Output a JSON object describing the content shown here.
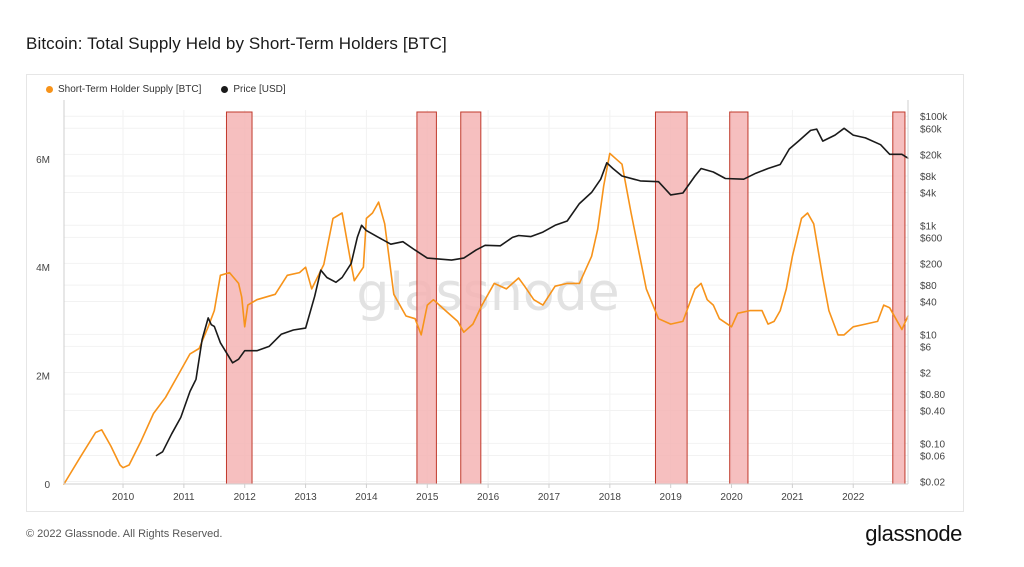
{
  "title": "Bitcoin: Total Supply Held by Short-Term Holders [BTC]",
  "watermark": "glassnode",
  "footer": "© 2022 Glassnode. All Rights Reserved.",
  "brand": "glassnode",
  "legend": [
    {
      "label": "Short-Term Holder Supply [BTC]",
      "color": "#f7931a",
      "icon": "orange-dot-icon"
    },
    {
      "label": "Price [USD]",
      "color": "#1a1a1a",
      "icon": "black-dot-icon"
    }
  ],
  "colors": {
    "sth_supply": "#f7931a",
    "price": "#1a1a1a",
    "band_fill": "#f4b4b4",
    "band_stroke": "#c0392b"
  },
  "chart_data": {
    "type": "line",
    "title": "Bitcoin: Total Supply Held by Short-Term Holders [BTC]",
    "x_range": [
      2009.03,
      2022.9
    ],
    "left_axis": {
      "ticks": [
        0,
        2000000,
        4000000,
        6000000
      ],
      "tick_labels": [
        "0",
        "2M",
        "4M",
        "6M"
      ],
      "ylim": [
        0,
        6900000
      ]
    },
    "right_axis": {
      "scale": "log",
      "ylim": [
        0.018,
        130000
      ],
      "ticks": [
        0.02,
        0.06,
        0.1,
        0.4,
        0.8,
        2,
        6,
        10,
        40,
        80,
        200,
        600,
        1000,
        4000,
        8000,
        20000,
        60000,
        100000
      ],
      "tick_labels": [
        "$0.02",
        "$0.06",
        "$0.10",
        "$0.40",
        "$0.80",
        "$2",
        "$6",
        "$10",
        "$40",
        "$80",
        "$200",
        "$600",
        "$1k",
        "$4k",
        "$8k",
        "$20k",
        "$60k",
        "$100k"
      ]
    },
    "x_ticks": [
      2010,
      2011,
      2012,
      2013,
      2014,
      2015,
      2016,
      2017,
      2018,
      2019,
      2020,
      2021,
      2022
    ],
    "x_tick_labels": [
      "2010",
      "2011",
      "2012",
      "2013",
      "2014",
      "2015",
      "2016",
      "2017",
      "2018",
      "2019",
      "2020",
      "2021",
      "2022"
    ],
    "highlight_bands": [
      [
        2011.7,
        2012.12
      ],
      [
        2014.83,
        2015.15
      ],
      [
        2015.55,
        2015.88
      ],
      [
        2018.75,
        2019.27
      ],
      [
        2019.97,
        2020.27
      ],
      [
        2022.65,
        2022.85
      ]
    ],
    "series": [
      {
        "name": "Short-Term Holder Supply [BTC]",
        "axis": "left",
        "x": [
          2009.03,
          2009.3,
          2009.55,
          2009.65,
          2009.8,
          2009.95,
          2010.0,
          2010.1,
          2010.3,
          2010.5,
          2010.7,
          2010.9,
          2011.1,
          2011.25,
          2011.4,
          2011.5,
          2011.6,
          2011.75,
          2011.9,
          2011.95,
          2012.0,
          2012.05,
          2012.2,
          2012.5,
          2012.7,
          2012.9,
          2013.0,
          2013.1,
          2013.3,
          2013.45,
          2013.6,
          2013.75,
          2013.8,
          2013.95,
          2014.0,
          2014.1,
          2014.2,
          2014.3,
          2014.45,
          2014.65,
          2014.8,
          2014.9,
          2015.0,
          2015.1,
          2015.3,
          2015.5,
          2015.6,
          2015.75,
          2015.9,
          2016.1,
          2016.3,
          2016.5,
          2016.6,
          2016.75,
          2016.9,
          2017.1,
          2017.3,
          2017.5,
          2017.7,
          2017.8,
          2017.9,
          2018.0,
          2018.1,
          2018.2,
          2018.35,
          2018.6,
          2018.8,
          2019.0,
          2019.2,
          2019.3,
          2019.4,
          2019.5,
          2019.6,
          2019.7,
          2019.8,
          2020.0,
          2020.1,
          2020.3,
          2020.5,
          2020.6,
          2020.7,
          2020.8,
          2020.9,
          2021.0,
          2021.15,
          2021.25,
          2021.35,
          2021.5,
          2021.6,
          2021.75,
          2021.85,
          2022.0,
          2022.2,
          2022.4,
          2022.5,
          2022.6,
          2022.7,
          2022.8,
          2022.9
        ],
        "values": [
          0,
          500000,
          950000,
          1000000,
          700000,
          350000,
          300000,
          350000,
          800000,
          1300000,
          1600000,
          2000000,
          2400000,
          2500000,
          2900000,
          3200000,
          3850000,
          3900000,
          3700000,
          3450000,
          2900000,
          3300000,
          3400000,
          3500000,
          3850000,
          3900000,
          4000000,
          3600000,
          4050000,
          4900000,
          5000000,
          4050000,
          3750000,
          4000000,
          4900000,
          5000000,
          5200000,
          4800000,
          3500000,
          3100000,
          3050000,
          2750000,
          3300000,
          3400000,
          3200000,
          3000000,
          2800000,
          2950000,
          3300000,
          3700000,
          3600000,
          3800000,
          3650000,
          3400000,
          3300000,
          3650000,
          3700000,
          3700000,
          4200000,
          4700000,
          5500000,
          6100000,
          6000000,
          5900000,
          5000000,
          3600000,
          3050000,
          2950000,
          3000000,
          3300000,
          3600000,
          3700000,
          3400000,
          3300000,
          3050000,
          2900000,
          3150000,
          3200000,
          3200000,
          2950000,
          3000000,
          3200000,
          3600000,
          4200000,
          4900000,
          5000000,
          4800000,
          3800000,
          3200000,
          2750000,
          2750000,
          2900000,
          2950000,
          3000000,
          3300000,
          3250000,
          3050000,
          2850000,
          3100000
        ]
      },
      {
        "name": "Price [USD]",
        "axis": "right",
        "x": [
          2010.55,
          2010.65,
          2010.8,
          2010.95,
          2011.1,
          2011.2,
          2011.3,
          2011.4,
          2011.45,
          2011.5,
          2011.6,
          2011.8,
          2011.9,
          2012.0,
          2012.2,
          2012.4,
          2012.6,
          2012.8,
          2013.0,
          2013.15,
          2013.25,
          2013.35,
          2013.5,
          2013.6,
          2013.75,
          2013.85,
          2013.92,
          2014.0,
          2014.2,
          2014.4,
          2014.6,
          2014.8,
          2015.0,
          2015.2,
          2015.4,
          2015.6,
          2015.8,
          2015.95,
          2016.2,
          2016.4,
          2016.5,
          2016.7,
          2016.9,
          2017.1,
          2017.3,
          2017.5,
          2017.7,
          2017.85,
          2017.95,
          2018.05,
          2018.2,
          2018.5,
          2018.8,
          2019.0,
          2019.2,
          2019.4,
          2019.5,
          2019.7,
          2019.9,
          2020.2,
          2020.4,
          2020.6,
          2020.8,
          2020.95,
          2021.1,
          2021.3,
          2021.4,
          2021.5,
          2021.7,
          2021.85,
          2022.0,
          2022.2,
          2022.45,
          2022.6,
          2022.8,
          2022.9
        ],
        "values": [
          0.06,
          0.07,
          0.15,
          0.3,
          0.9,
          1.5,
          8,
          20,
          15,
          14,
          7,
          3,
          3.5,
          5,
          5,
          6,
          10,
          12,
          13,
          50,
          150,
          110,
          90,
          110,
          200,
          600,
          1000,
          800,
          600,
          450,
          500,
          350,
          250,
          240,
          230,
          250,
          350,
          430,
          420,
          600,
          650,
          620,
          750,
          1000,
          1200,
          2500,
          4000,
          7000,
          14000,
          11000,
          8000,
          6500,
          6300,
          3600,
          3900,
          8000,
          11000,
          9500,
          7200,
          7000,
          9000,
          11000,
          13000,
          25000,
          35000,
          55000,
          58000,
          35000,
          45000,
          60000,
          45000,
          40000,
          30000,
          20000,
          20000,
          17000
        ]
      }
    ]
  }
}
